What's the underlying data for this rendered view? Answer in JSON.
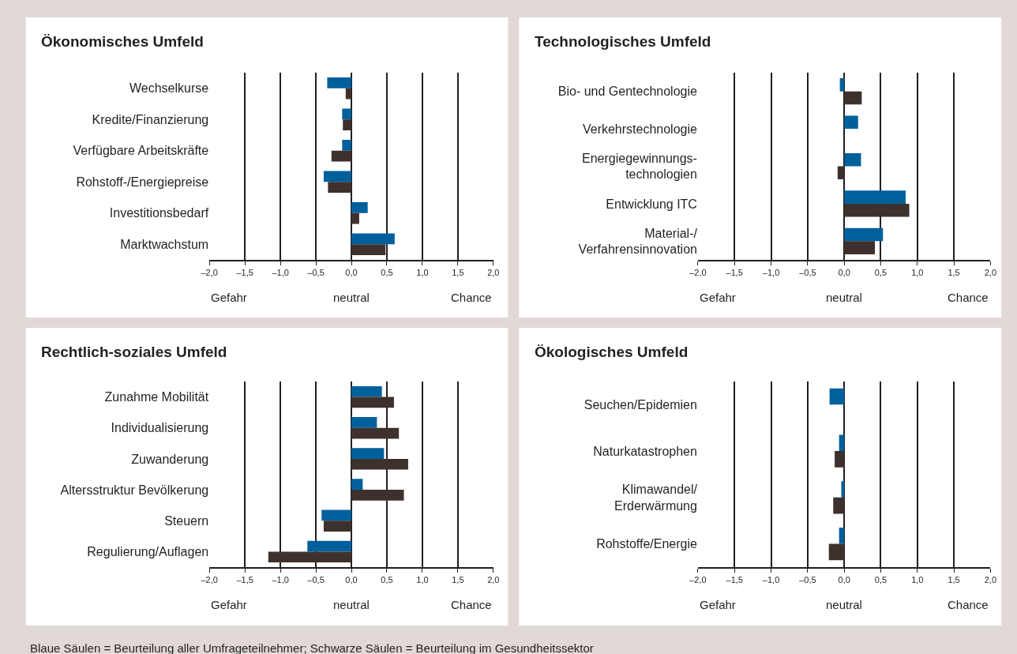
{
  "chart_data": [
    {
      "type": "bar",
      "orientation": "horizontal",
      "title": "Ökonomisches Umfeld",
      "categories": [
        "Wechselkurse",
        "Kredite/Finanzierung",
        "Verfügbare Arbeitskräfte",
        "Rohstoff-/Energiepreise",
        "Investitionsbedarf",
        "Marktwachstum"
      ],
      "series": [
        {
          "color": "#00609c",
          "values": [
            -0.34,
            -0.13,
            -0.13,
            -0.39,
            0.23,
            0.61
          ]
        },
        {
          "color": "#3e312d",
          "values": [
            -0.08,
            -0.12,
            -0.28,
            -0.33,
            0.11,
            0.48
          ]
        }
      ],
      "xlim": [
        -2,
        2
      ],
      "xticks": [
        {
          "value": -2,
          "label": "–2,0"
        },
        {
          "value": -1.5,
          "label": "–1,5"
        },
        {
          "value": -1,
          "label": "–1,0"
        },
        {
          "value": -0.5,
          "label": "–0,5"
        },
        {
          "value": 0,
          "label": "0,0"
        },
        {
          "value": 0.5,
          "label": "0,5"
        },
        {
          "value": 1,
          "label": "1,0"
        },
        {
          "value": 1.5,
          "label": "1,5"
        },
        {
          "value": 2,
          "label": "2,0"
        }
      ],
      "grid": "x",
      "annotations": [
        "Gefahr",
        "neutral",
        "Chance"
      ]
    },
    {
      "type": "bar",
      "orientation": "horizontal",
      "title": "Technologisches Umfeld",
      "categories": [
        "Bio- und Gentechnologie",
        "Verkehrstechnologie",
        "Energiegewinnungs-\ntechnologien",
        "Entwicklung ITC",
        "Material-/\nVerfahrensinnovation"
      ],
      "series": [
        {
          "color": "#00609c",
          "values": [
            -0.06,
            0.19,
            0.23,
            0.84,
            0.53
          ]
        },
        {
          "color": "#3e312d",
          "values": [
            0.24,
            null,
            -0.09,
            0.89,
            0.42
          ]
        }
      ],
      "xlim": [
        -2,
        2
      ],
      "xticks": [
        {
          "value": -2,
          "label": "–2,0"
        },
        {
          "value": -1.5,
          "label": "–1,5"
        },
        {
          "value": -1,
          "label": "–1,0"
        },
        {
          "value": -0.5,
          "label": "–0,5"
        },
        {
          "value": 0,
          "label": "0,0"
        },
        {
          "value": 0.5,
          "label": "0,5"
        },
        {
          "value": 1,
          "label": "1,0"
        },
        {
          "value": 1.5,
          "label": "1,5"
        },
        {
          "value": 2,
          "label": "2,0"
        }
      ],
      "grid": "x",
      "annotations": [
        "Gefahr",
        "neutral",
        "Chance"
      ]
    },
    {
      "type": "bar",
      "orientation": "horizontal",
      "title": "Rechtlich-soziales Umfeld",
      "categories": [
        "Zunahme Mobilität",
        "Individualisierung",
        "Zuwanderung",
        "Altersstruktur Bevölkerung",
        "Steuern",
        "Regulierung/Auflagen"
      ],
      "series": [
        {
          "color": "#00609c",
          "values": [
            0.43,
            0.36,
            0.46,
            0.16,
            -0.42,
            -0.62
          ]
        },
        {
          "color": "#3e312d",
          "values": [
            0.6,
            0.67,
            0.8,
            0.74,
            -0.39,
            -1.17
          ]
        }
      ],
      "xlim": [
        -2,
        2
      ],
      "xticks": [
        {
          "value": -2,
          "label": "–2,0"
        },
        {
          "value": -1.5,
          "label": "–1,5"
        },
        {
          "value": -1,
          "label": "–1,0"
        },
        {
          "value": -0.5,
          "label": "–0,5"
        },
        {
          "value": 0,
          "label": "0,0"
        },
        {
          "value": 0.5,
          "label": "0,5"
        },
        {
          "value": 1,
          "label": "1,0"
        },
        {
          "value": 1.5,
          "label": "1,5"
        },
        {
          "value": 2,
          "label": "2,0"
        }
      ],
      "grid": "x",
      "annotations": [
        "Gefahr",
        "neutral",
        "Chance"
      ]
    },
    {
      "type": "bar",
      "orientation": "horizontal",
      "title": "Ökologisches Umfeld",
      "categories": [
        "Seuchen/Epidemien",
        "Naturkatastrophen",
        "Klimawandel/\nErderwärmung",
        "Rohstoffe/Energie"
      ],
      "series": [
        {
          "color": "#00609c",
          "values": [
            -0.2,
            -0.07,
            -0.04,
            -0.07
          ]
        },
        {
          "color": "#3e312d",
          "values": [
            null,
            -0.13,
            -0.15,
            -0.21
          ]
        }
      ],
      "xlim": [
        -2,
        2
      ],
      "xticks": [
        {
          "value": -2,
          "label": "–2,0"
        },
        {
          "value": -1.5,
          "label": "–1,5"
        },
        {
          "value": -1,
          "label": "–1,0"
        },
        {
          "value": -0.5,
          "label": "–0,5"
        },
        {
          "value": 0,
          "label": "0,0"
        },
        {
          "value": 0.5,
          "label": "0,5"
        },
        {
          "value": 1,
          "label": "1,0"
        },
        {
          "value": 1.5,
          "label": "1,5"
        },
        {
          "value": 2,
          "label": "2,0"
        }
      ],
      "grid": "x",
      "annotations": [
        "Gefahr",
        "neutral",
        "Chance",
        "Blaue Säulen = Beurteilung aller Umfrageteilnehmer; Schwarze Säulen = Beurteilung im Gesundheitssektor"
      ]
    }
  ]
}
